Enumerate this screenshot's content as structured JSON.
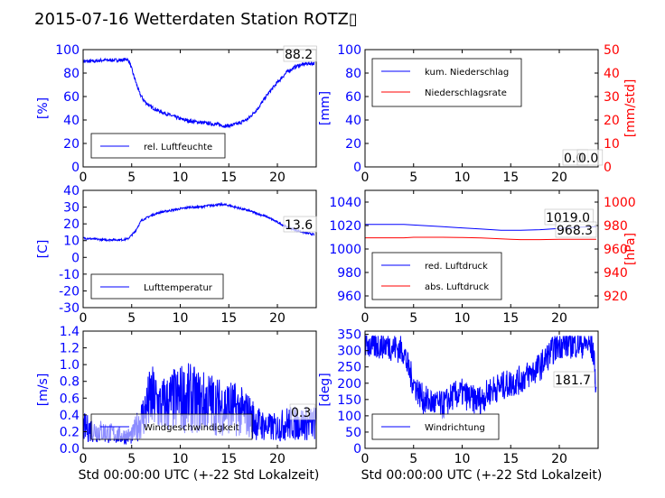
{
  "title": "2015-07-16 Wetterdaten Station ROTZ▯",
  "xlabel": "Std 00:00:00 UTC (+-22 Std Lokalzeit)",
  "colors": {
    "left": "#0000ff",
    "right": "#ff0000",
    "axis": "#000000"
  },
  "chart_data": [
    {
      "type": "line",
      "ylabel": "[%]",
      "xlim": [
        0,
        24
      ],
      "ylim": [
        0,
        100
      ],
      "xticks": [
        0,
        5,
        10,
        15,
        20
      ],
      "yticks": [
        0,
        20,
        40,
        60,
        80,
        100
      ],
      "legend": "lower-left",
      "annotations": [
        "88.2"
      ],
      "series": [
        {
          "name": "rel. Luftfeuchte",
          "color": "#0000ff",
          "x": [
            0,
            1,
            2,
            3,
            4,
            4.5,
            4.8,
            5.2,
            5.8,
            6.3,
            7,
            8,
            9,
            10,
            11,
            12,
            13,
            14,
            14.5,
            15,
            16,
            17,
            18,
            18.5,
            19,
            20,
            21,
            22,
            22.5,
            23,
            23.8
          ],
          "y": [
            90,
            90,
            91,
            91,
            91,
            92,
            89,
            78,
            63,
            56,
            51,
            47,
            44,
            41,
            39,
            38,
            37,
            36,
            35,
            35,
            37,
            41,
            50,
            56,
            62,
            72,
            81,
            86,
            87,
            88,
            88.2
          ],
          "noise": 1.5,
          "dense": true
        }
      ]
    },
    {
      "type": "line",
      "ylabel": "[mm]",
      "y2label": "[mm/std]",
      "xlim": [
        0,
        24
      ],
      "ylim": [
        0,
        100
      ],
      "y2lim": [
        0,
        50
      ],
      "xticks": [
        0,
        5,
        10,
        15,
        20
      ],
      "yticks": [
        0,
        20,
        40,
        60,
        80,
        100
      ],
      "y2ticks": [
        0,
        10,
        20,
        30,
        40,
        50
      ],
      "legend": "top-left",
      "annotations": [
        "0.0",
        "0.0"
      ],
      "series": [
        {
          "name": "kum. Niederschlag",
          "color": "#0000ff",
          "x": [
            0,
            24
          ],
          "y": [
            0,
            0
          ]
        },
        {
          "name": "Niederschlagsrate",
          "color": "#ff0000",
          "x": [
            0,
            24
          ],
          "y": [
            0,
            0
          ]
        }
      ]
    },
    {
      "type": "line",
      "ylabel": "[C]",
      "xlim": [
        0,
        24
      ],
      "ylim": [
        -30,
        40
      ],
      "xticks": [
        0,
        5,
        10,
        15,
        20
      ],
      "yticks": [
        -30,
        -20,
        -10,
        0,
        10,
        20,
        30,
        40
      ],
      "legend": "lower-left",
      "annotations": [
        "13.6"
      ],
      "series": [
        {
          "name": "Lufttemperatur",
          "color": "#0000ff",
          "x": [
            0,
            1,
            2,
            3,
            4,
            4.6,
            5.3,
            6,
            7,
            8,
            9,
            10,
            11,
            12,
            13,
            14,
            14.5,
            15,
            16,
            17,
            18,
            19,
            20,
            21,
            22,
            23,
            23.8
          ],
          "y": [
            11.5,
            11,
            10.5,
            10.5,
            10.5,
            11,
            15,
            22,
            25,
            27,
            28,
            29,
            30,
            30,
            31,
            31.5,
            31.5,
            31,
            29.5,
            28,
            26,
            24,
            21,
            18,
            16,
            14.5,
            13.6
          ],
          "noise": 0.6,
          "dense": true
        }
      ]
    },
    {
      "type": "line",
      "ylabel": "",
      "y2label": "[hPa]",
      "xlim": [
        0,
        24
      ],
      "ylim": [
        950,
        1050
      ],
      "y2lim": [
        910,
        1010
      ],
      "xticks": [
        0,
        5,
        10,
        15,
        20
      ],
      "yticks": [
        960,
        980,
        1000,
        1020,
        1040
      ],
      "y2ticks": [
        920,
        940,
        960,
        980,
        1000
      ],
      "legend": "lower-left",
      "annotations": [
        "1019.0",
        "968.3"
      ],
      "series": [
        {
          "name": "red. Luftdruck",
          "color": "#0000ff",
          "axis": "left",
          "x": [
            0,
            2,
            4,
            5,
            6,
            8,
            10,
            12,
            14,
            15,
            16,
            18,
            20,
            22,
            23.8
          ],
          "y": [
            1021,
            1021,
            1021,
            1020.5,
            1020,
            1019,
            1018,
            1017,
            1016,
            1016,
            1016,
            1016.5,
            1017.5,
            1018.5,
            1019
          ]
        },
        {
          "name": "abs. Luftdruck",
          "color": "#ff0000",
          "axis": "right",
          "x": [
            0,
            2,
            4,
            5,
            6,
            8,
            10,
            12,
            14,
            15,
            16,
            18,
            20,
            22,
            23.8
          ],
          "y": [
            969.5,
            969.5,
            969.5,
            970,
            970,
            970,
            969.8,
            969.4,
            968.6,
            968.2,
            968,
            968,
            968.2,
            968.3,
            968.3
          ]
        }
      ]
    },
    {
      "type": "line",
      "ylabel": "[m/s]",
      "xlim": [
        0,
        24
      ],
      "ylim": [
        0,
        1.4
      ],
      "xticks": [
        0,
        5,
        10,
        15,
        20
      ],
      "yticks": [
        0.0,
        0.2,
        0.4,
        0.6,
        0.8,
        1.0,
        1.2,
        1.4
      ],
      "legend": "lower-left",
      "annotations": [
        "0.3"
      ],
      "series": [
        {
          "name": "Windgeschwindigkeit",
          "color": "#0000ff",
          "x": [
            0,
            2,
            4,
            5,
            6,
            7,
            8,
            9,
            10,
            11,
            12,
            13,
            14,
            15,
            16,
            17,
            18,
            19,
            20,
            21,
            22,
            23,
            24
          ],
          "y": [
            0.25,
            0.2,
            0.15,
            0.15,
            0.35,
            0.6,
            0.5,
            0.55,
            0.6,
            0.6,
            0.55,
            0.55,
            0.5,
            0.5,
            0.45,
            0.4,
            0.3,
            0.25,
            0.25,
            0.3,
            0.3,
            0.3,
            0.3
          ],
          "noise": 0.28,
          "dense": true
        }
      ]
    },
    {
      "type": "line",
      "ylabel": "[deg]",
      "xlim": [
        0,
        24
      ],
      "ylim": [
        0,
        360
      ],
      "xticks": [
        0,
        5,
        10,
        15,
        20
      ],
      "yticks": [
        0,
        50,
        100,
        150,
        200,
        250,
        300,
        350
      ],
      "legend": "lower-left",
      "annotations": [
        "181.7"
      ],
      "series": [
        {
          "name": "Windrichtung",
          "color": "#0000ff",
          "x": [
            0,
            1,
            2,
            3,
            4,
            4.3,
            5,
            6,
            7,
            8,
            9,
            10,
            11,
            12,
            13,
            14,
            15,
            16,
            17,
            18,
            19,
            20,
            21,
            22,
            23,
            23.5,
            23.8
          ],
          "y": [
            320,
            315,
            320,
            310,
            300,
            260,
            200,
            150,
            140,
            130,
            160,
            170,
            150,
            150,
            180,
            190,
            200,
            210,
            230,
            250,
            290,
            320,
            320,
            320,
            320,
            300,
            181.7
          ],
          "noise": 45,
          "dense": true
        }
      ]
    }
  ]
}
